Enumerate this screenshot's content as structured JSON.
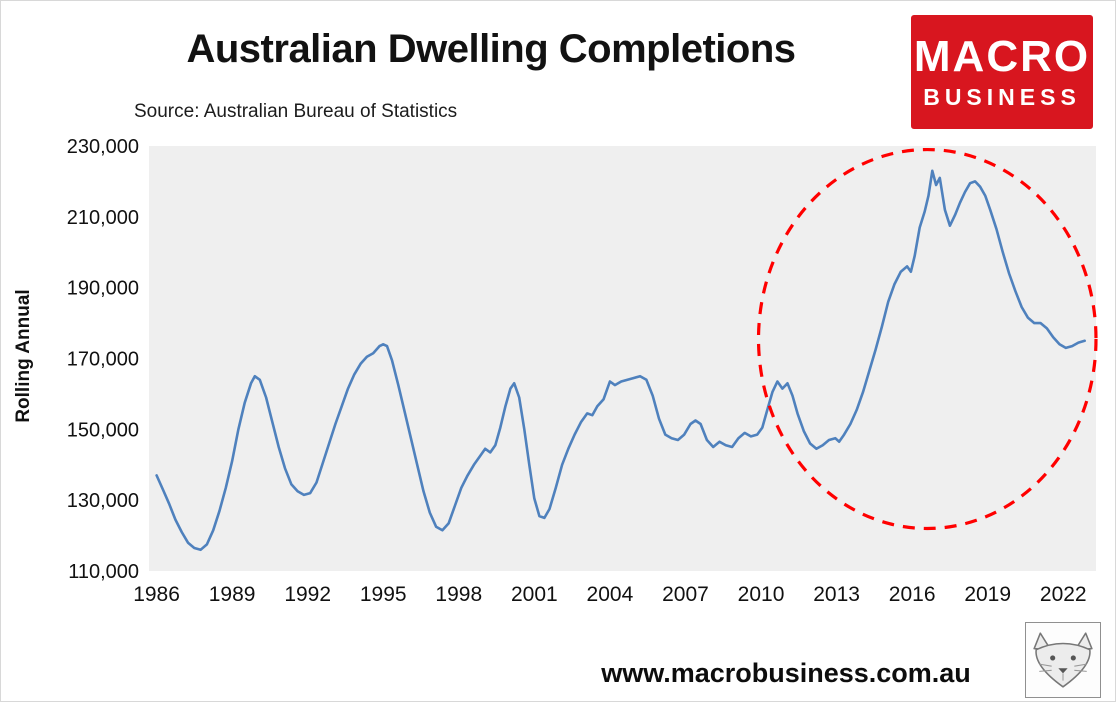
{
  "header": {
    "title": "Australian Dwelling Completions",
    "source": "Source: Australian Bureau of Statistics",
    "logo": {
      "line1": "MACRO",
      "line2": "BUSINESS",
      "bg_color": "#d8161f",
      "text_color": "#ffffff"
    }
  },
  "footer": {
    "url": "www.macrobusiness.com.au",
    "logo_icon": "fox-sketch-icon"
  },
  "chart_data": {
    "type": "line",
    "title": "Australian Dwelling Completions",
    "xlabel": "",
    "ylabel": "Rolling Annual",
    "xlim": [
      1985.7,
      2023.3
    ],
    "ylim": [
      110000,
      230000
    ],
    "x_ticks": [
      1986,
      1989,
      1992,
      1995,
      1998,
      2001,
      2004,
      2007,
      2010,
      2013,
      2016,
      2019,
      2022
    ],
    "y_ticks": [
      110000,
      130000,
      150000,
      170000,
      190000,
      210000,
      230000
    ],
    "y_tick_labels": [
      "110,000",
      "130,000",
      "150,000",
      "170,000",
      "190,000",
      "210,000",
      "230,000"
    ],
    "grid": false,
    "legend": "none",
    "line_color": "#4f81bd",
    "plot_bg": "#efefef",
    "annotation": {
      "type": "dashed-ellipse",
      "color": "#ff0000",
      "x1": 2009.9,
      "x2": 2023.3,
      "y1": 122000,
      "y2": 229000
    },
    "series": [
      {
        "name": "Dwelling completions (rolling annual)",
        "points": [
          [
            1986.0,
            137000
          ],
          [
            1986.25,
            133000
          ],
          [
            1986.5,
            129000
          ],
          [
            1986.75,
            124500
          ],
          [
            1987.0,
            121000
          ],
          [
            1987.25,
            118000
          ],
          [
            1987.5,
            116500
          ],
          [
            1987.75,
            116000
          ],
          [
            1988.0,
            117500
          ],
          [
            1988.25,
            121500
          ],
          [
            1988.5,
            127000
          ],
          [
            1988.75,
            133500
          ],
          [
            1989.0,
            141000
          ],
          [
            1989.25,
            150000
          ],
          [
            1989.5,
            157500
          ],
          [
            1989.75,
            163000
          ],
          [
            1989.9,
            165000
          ],
          [
            1990.1,
            164000
          ],
          [
            1990.35,
            159000
          ],
          [
            1990.6,
            152000
          ],
          [
            1990.85,
            145000
          ],
          [
            1991.1,
            139000
          ],
          [
            1991.35,
            134500
          ],
          [
            1991.6,
            132500
          ],
          [
            1991.85,
            131500
          ],
          [
            1992.1,
            132000
          ],
          [
            1992.35,
            135000
          ],
          [
            1992.6,
            140500
          ],
          [
            1992.85,
            146000
          ],
          [
            1993.1,
            151500
          ],
          [
            1993.35,
            156500
          ],
          [
            1993.6,
            161500
          ],
          [
            1993.85,
            165500
          ],
          [
            1994.1,
            168500
          ],
          [
            1994.35,
            170500
          ],
          [
            1994.6,
            171500
          ],
          [
            1994.85,
            173500
          ],
          [
            1995.0,
            174000
          ],
          [
            1995.15,
            173500
          ],
          [
            1995.35,
            169500
          ],
          [
            1995.6,
            162500
          ],
          [
            1995.85,
            155000
          ],
          [
            1996.1,
            147500
          ],
          [
            1996.35,
            140000
          ],
          [
            1996.6,
            132500
          ],
          [
            1996.85,
            126500
          ],
          [
            1997.1,
            122500
          ],
          [
            1997.35,
            121500
          ],
          [
            1997.6,
            123500
          ],
          [
            1997.85,
            128500
          ],
          [
            1998.1,
            133500
          ],
          [
            1998.35,
            137000
          ],
          [
            1998.6,
            140000
          ],
          [
            1998.85,
            142500
          ],
          [
            1999.05,
            144500
          ],
          [
            1999.25,
            143500
          ],
          [
            1999.45,
            145500
          ],
          [
            1999.65,
            150500
          ],
          [
            1999.85,
            156500
          ],
          [
            2000.05,
            161500
          ],
          [
            2000.2,
            163000
          ],
          [
            2000.4,
            159000
          ],
          [
            2000.6,
            150000
          ],
          [
            2000.8,
            140000
          ],
          [
            2001.0,
            130500
          ],
          [
            2001.2,
            125500
          ],
          [
            2001.4,
            125000
          ],
          [
            2001.6,
            127500
          ],
          [
            2001.85,
            133500
          ],
          [
            2002.1,
            140000
          ],
          [
            2002.35,
            144500
          ],
          [
            2002.6,
            148500
          ],
          [
            2002.85,
            152000
          ],
          [
            2003.1,
            154500
          ],
          [
            2003.3,
            154000
          ],
          [
            2003.5,
            156500
          ],
          [
            2003.75,
            158500
          ],
          [
            2004.0,
            163500
          ],
          [
            2004.2,
            162500
          ],
          [
            2004.45,
            163500
          ],
          [
            2004.7,
            164000
          ],
          [
            2004.95,
            164500
          ],
          [
            2005.2,
            165000
          ],
          [
            2005.45,
            164000
          ],
          [
            2005.7,
            159500
          ],
          [
            2005.95,
            153000
          ],
          [
            2006.2,
            148500
          ],
          [
            2006.45,
            147500
          ],
          [
            2006.7,
            147000
          ],
          [
            2006.95,
            148500
          ],
          [
            2007.2,
            151500
          ],
          [
            2007.4,
            152500
          ],
          [
            2007.6,
            151500
          ],
          [
            2007.85,
            147000
          ],
          [
            2008.1,
            145000
          ],
          [
            2008.35,
            146500
          ],
          [
            2008.6,
            145500
          ],
          [
            2008.85,
            145000
          ],
          [
            2009.1,
            147500
          ],
          [
            2009.35,
            149000
          ],
          [
            2009.6,
            148000
          ],
          [
            2009.85,
            148500
          ],
          [
            2010.05,
            150500
          ],
          [
            2010.25,
            155500
          ],
          [
            2010.45,
            160500
          ],
          [
            2010.65,
            163500
          ],
          [
            2010.85,
            161500
          ],
          [
            2011.05,
            163000
          ],
          [
            2011.25,
            159500
          ],
          [
            2011.45,
            154500
          ],
          [
            2011.7,
            149500
          ],
          [
            2011.95,
            146000
          ],
          [
            2012.2,
            144500
          ],
          [
            2012.45,
            145500
          ],
          [
            2012.7,
            147000
          ],
          [
            2012.95,
            147500
          ],
          [
            2013.1,
            146500
          ],
          [
            2013.3,
            148500
          ],
          [
            2013.55,
            151500
          ],
          [
            2013.8,
            155500
          ],
          [
            2014.05,
            160500
          ],
          [
            2014.3,
            166500
          ],
          [
            2014.55,
            172500
          ],
          [
            2014.8,
            179000
          ],
          [
            2015.05,
            186000
          ],
          [
            2015.3,
            191000
          ],
          [
            2015.55,
            194500
          ],
          [
            2015.8,
            196000
          ],
          [
            2015.95,
            194500
          ],
          [
            2016.1,
            199000
          ],
          [
            2016.3,
            207000
          ],
          [
            2016.5,
            211500
          ],
          [
            2016.65,
            216000
          ],
          [
            2016.8,
            223000
          ],
          [
            2016.95,
            219000
          ],
          [
            2017.1,
            221000
          ],
          [
            2017.3,
            212000
          ],
          [
            2017.5,
            207500
          ],
          [
            2017.7,
            210500
          ],
          [
            2017.9,
            214000
          ],
          [
            2018.1,
            217000
          ],
          [
            2018.3,
            219500
          ],
          [
            2018.5,
            220000
          ],
          [
            2018.7,
            218500
          ],
          [
            2018.9,
            216000
          ],
          [
            2019.1,
            212000
          ],
          [
            2019.35,
            206500
          ],
          [
            2019.6,
            200000
          ],
          [
            2019.85,
            194000
          ],
          [
            2020.1,
            189000
          ],
          [
            2020.35,
            184500
          ],
          [
            2020.6,
            181500
          ],
          [
            2020.85,
            180000
          ],
          [
            2021.1,
            180000
          ],
          [
            2021.35,
            178500
          ],
          [
            2021.6,
            176000
          ],
          [
            2021.85,
            174000
          ],
          [
            2022.1,
            173000
          ],
          [
            2022.35,
            173500
          ],
          [
            2022.6,
            174500
          ],
          [
            2022.85,
            175000
          ]
        ]
      }
    ]
  }
}
